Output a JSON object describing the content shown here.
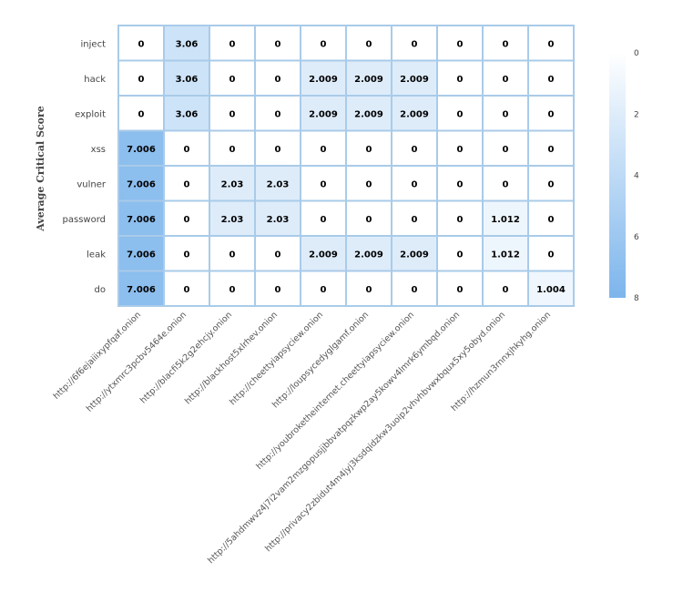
{
  "chart_data": {
    "type": "heatmap",
    "ylabel": "Average Critical Score",
    "rows": [
      "inject",
      "hack",
      "exploit",
      "xss",
      "vulner",
      "password",
      "leak",
      "do"
    ],
    "columns": [
      "http://6f6ejaiiixypfqaf.onion",
      "http://ytxmrc3pcbv5464e.onion",
      "http://blacfi5k2g2ehcjy.onion",
      "http://blackhost5xlrhev.onion",
      "http://cheettyiapsyciew.onion",
      "http://loupsycedyglgamf.onion",
      "http://youbroketheinternet.cheettyiapsyciew.onion",
      "http://5ahdmwvz4j7i2vam2mzgopusjjbbvatpqzkwp2ay5kowv4lmrk6ymbqd.onion",
      "http://privacy2zbidut4m4jyj3ksdqidzkw3uoip2vhvhbvwxbqux5xy5obyd.onion",
      "http://hzmun3rnnxjhkyhg.onion"
    ],
    "values": [
      [
        0,
        3.06,
        0,
        0,
        0,
        0,
        0,
        0,
        0,
        0
      ],
      [
        0,
        3.06,
        0,
        0,
        2.009,
        2.009,
        2.009,
        0,
        0,
        0
      ],
      [
        0,
        3.06,
        0,
        0,
        2.009,
        2.009,
        2.009,
        0,
        0,
        0
      ],
      [
        7.006,
        0,
        0,
        0,
        0,
        0,
        0,
        0,
        0,
        0
      ],
      [
        7.006,
        0,
        2.03,
        2.03,
        0,
        0,
        0,
        0,
        0,
        0
      ],
      [
        7.006,
        0,
        2.03,
        2.03,
        0,
        0,
        0,
        0,
        1.012,
        0
      ],
      [
        7.006,
        0,
        0,
        0,
        2.009,
        2.009,
        2.009,
        0,
        1.012,
        0
      ],
      [
        7.006,
        0,
        0,
        0,
        0,
        0,
        0,
        0,
        0,
        1.004
      ]
    ],
    "value_labels": [
      [
        "0",
        "3.06",
        "0",
        "0",
        "0",
        "0",
        "0",
        "0",
        "0",
        "0"
      ],
      [
        "0",
        "3.06",
        "0",
        "0",
        "2.009",
        "2.009",
        "2.009",
        "0",
        "0",
        "0"
      ],
      [
        "0",
        "3.06",
        "0",
        "0",
        "2.009",
        "2.009",
        "2.009",
        "0",
        "0",
        "0"
      ],
      [
        "7.006",
        "0",
        "0",
        "0",
        "0",
        "0",
        "0",
        "0",
        "0",
        "0"
      ],
      [
        "7.006",
        "0",
        "2.03",
        "2.03",
        "0",
        "0",
        "0",
        "0",
        "0",
        "0"
      ],
      [
        "7.006",
        "0",
        "2.03",
        "2.03",
        "0",
        "0",
        "0",
        "0",
        "1.012",
        "0"
      ],
      [
        "7.006",
        "0",
        "0",
        "0",
        "2.009",
        "2.009",
        "2.009",
        "0",
        "1.012",
        "0"
      ],
      [
        "7.006",
        "0",
        "0",
        "0",
        "0",
        "0",
        "0",
        "0",
        "0",
        "1.004"
      ]
    ],
    "color_scale": {
      "min": 0,
      "max": 8,
      "min_color": "#ffffff",
      "max_color": "#7cb5ec",
      "ticks": [
        "0",
        "2",
        "4",
        "6",
        "8"
      ]
    },
    "cell_border_color": "#a9cbe9",
    "legend_position": "right"
  }
}
